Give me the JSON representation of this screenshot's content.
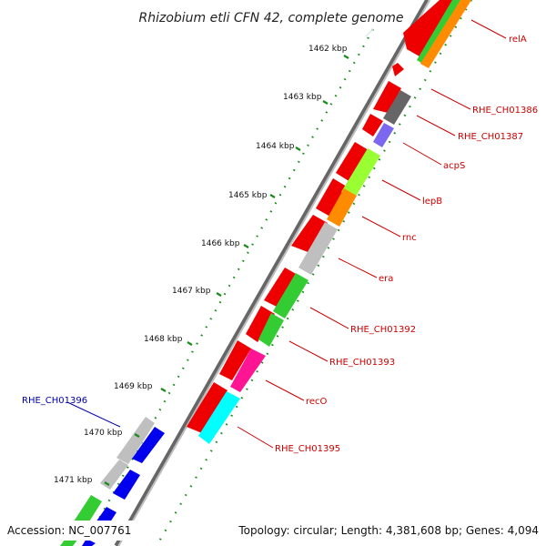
{
  "title": "Rhizobium etli CFN 42, complete genome",
  "accession": "Accession: NC_007761",
  "topology": "Topology: circular; Length: 4,381,608 bp; Genes: 4,094",
  "colors": {
    "backbone": "#888888",
    "tick": "#228B22",
    "label_red": "#cc0000",
    "label_blue": "#0000aa"
  },
  "ticks": [
    {
      "label": "1462 kbp"
    },
    {
      "label": "1463 kbp"
    },
    {
      "label": "1464 kbp"
    },
    {
      "label": "1465 kbp"
    },
    {
      "label": "1466 kbp"
    },
    {
      "label": "1467 kbp"
    },
    {
      "label": "1468 kbp"
    },
    {
      "label": "1469 kbp"
    },
    {
      "label": "1470 kbp"
    },
    {
      "label": "1471 kbp"
    }
  ],
  "gene_labels": [
    {
      "name": "relA",
      "color": "#cc0000"
    },
    {
      "name": "RHE_CH01386",
      "color": "#cc0000"
    },
    {
      "name": "RHE_CH01387",
      "color": "#cc0000"
    },
    {
      "name": "acpS",
      "color": "#cc0000"
    },
    {
      "name": "lepB",
      "color": "#cc0000"
    },
    {
      "name": "rnc",
      "color": "#cc0000"
    },
    {
      "name": "era",
      "color": "#cc0000"
    },
    {
      "name": "RHE_CH01392",
      "color": "#cc0000"
    },
    {
      "name": "RHE_CH01393",
      "color": "#cc0000"
    },
    {
      "name": "recO",
      "color": "#cc0000"
    },
    {
      "name": "RHE_CH01395",
      "color": "#cc0000"
    },
    {
      "name": "RHE_CH01396",
      "color": "#0000aa"
    }
  ]
}
